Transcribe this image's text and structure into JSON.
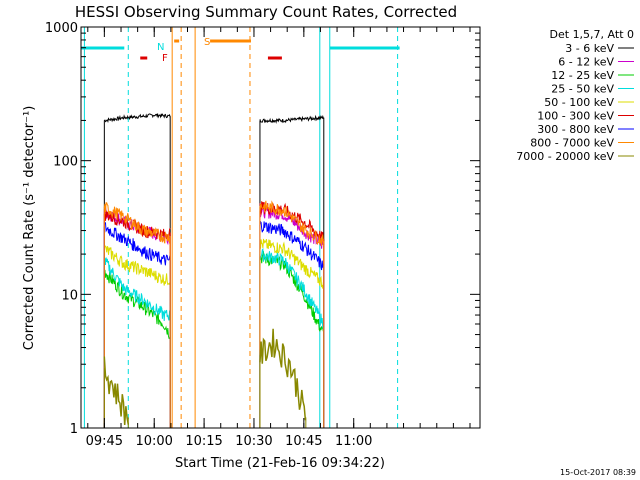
{
  "chart_data": {
    "type": "line",
    "title": "HESSI Observing Summary Count Rates, Corrected",
    "xlabel": "Start Time (21-Feb-16 09:34:22)",
    "ylabel": "Corrected Count Rate (s⁻¹ detector⁻¹)",
    "y_scale": "log",
    "ylim": [
      1,
      1000
    ],
    "y_ticks": [
      {
        "value": 1,
        "label": "1"
      },
      {
        "value": 10,
        "label": "10"
      },
      {
        "value": 100,
        "label": "100"
      },
      {
        "value": 1000,
        "label": "1000"
      }
    ],
    "x_range_minutes": [
      9.633,
      11.633
    ],
    "x_ticks": [
      {
        "value": 9.75,
        "label": "09:45"
      },
      {
        "value": 10.0,
        "label": "10:00"
      },
      {
        "value": 10.25,
        "label": "10:15"
      },
      {
        "value": 10.5,
        "label": "10:30"
      },
      {
        "value": 10.75,
        "label": "10:45"
      },
      {
        "value": 11.0,
        "label": "11:00"
      }
    ],
    "legend_header": "Det 1,5,7, Att 0",
    "legend_position": "outside-right",
    "series": [
      {
        "name": "3 - 6 keV",
        "color": "#000000",
        "seg1": [
          [
            9.75,
            200
          ],
          [
            9.85,
            210
          ],
          [
            9.95,
            215
          ],
          [
            10.0,
            220
          ],
          [
            10.08,
            215
          ]
        ],
        "seg2": [
          [
            10.53,
            200
          ],
          [
            10.65,
            200
          ],
          [
            10.75,
            205
          ],
          [
            10.85,
            210
          ]
        ]
      },
      {
        "name": "6 - 12 keV",
        "color": "#cc00cc",
        "seg1": [
          [
            9.75,
            42
          ],
          [
            9.85,
            35
          ],
          [
            9.95,
            30
          ],
          [
            10.05,
            27
          ],
          [
            10.08,
            27
          ]
        ],
        "seg2": [
          [
            10.53,
            42
          ],
          [
            10.65,
            40
          ],
          [
            10.75,
            30
          ],
          [
            10.85,
            23
          ]
        ]
      },
      {
        "name": "12 - 25 keV",
        "color": "#00cc00",
        "seg1": [
          [
            9.75,
            15
          ],
          [
            9.85,
            10
          ],
          [
            9.95,
            8
          ],
          [
            10.05,
            6
          ],
          [
            10.08,
            5
          ]
        ],
        "seg2": [
          [
            10.53,
            19
          ],
          [
            10.65,
            17
          ],
          [
            10.75,
            10
          ],
          [
            10.85,
            5
          ]
        ]
      },
      {
        "name": "25 - 50 keV",
        "color": "#00dddd",
        "seg1": [
          [
            9.75,
            18
          ],
          [
            9.85,
            11
          ],
          [
            9.95,
            9
          ],
          [
            10.05,
            7
          ],
          [
            10.08,
            7
          ]
        ],
        "seg2": [
          [
            10.53,
            20
          ],
          [
            10.65,
            18
          ],
          [
            10.75,
            11
          ],
          [
            10.85,
            6
          ]
        ]
      },
      {
        "name": "50 - 100 keV",
        "color": "#dddd00",
        "seg1": [
          [
            9.75,
            22
          ],
          [
            9.85,
            17
          ],
          [
            9.95,
            15
          ],
          [
            10.05,
            13
          ],
          [
            10.08,
            13
          ]
        ],
        "seg2": [
          [
            10.53,
            24
          ],
          [
            10.65,
            22
          ],
          [
            10.75,
            16
          ],
          [
            10.85,
            12
          ]
        ]
      },
      {
        "name": "100 - 300 keV",
        "color": "#dd0000",
        "seg1": [
          [
            9.75,
            40
          ],
          [
            9.85,
            35
          ],
          [
            9.95,
            30
          ],
          [
            10.05,
            28
          ],
          [
            10.08,
            29
          ]
        ],
        "seg2": [
          [
            10.53,
            45
          ],
          [
            10.65,
            43
          ],
          [
            10.75,
            35
          ],
          [
            10.85,
            26
          ]
        ]
      },
      {
        "name": "300 - 800 keV",
        "color": "#0000ff",
        "seg1": [
          [
            9.75,
            32
          ],
          [
            9.85,
            26
          ],
          [
            9.95,
            21
          ],
          [
            10.05,
            18
          ],
          [
            10.08,
            18
          ]
        ],
        "seg2": [
          [
            10.53,
            33
          ],
          [
            10.65,
            30
          ],
          [
            10.75,
            23
          ],
          [
            10.85,
            16
          ]
        ]
      },
      {
        "name": "800 - 7000 keV",
        "color": "#ff8800",
        "seg1": [
          [
            9.75,
            45
          ],
          [
            9.85,
            38
          ],
          [
            9.95,
            30
          ],
          [
            10.05,
            27
          ],
          [
            10.08,
            27
          ]
        ],
        "seg2": [
          [
            10.53,
            46
          ],
          [
            10.65,
            43
          ],
          [
            10.75,
            31
          ],
          [
            10.85,
            25
          ]
        ]
      },
      {
        "name": "7000 - 20000 keV",
        "color": "#888800",
        "seg1": [
          [
            9.75,
            2.8
          ],
          [
            9.8,
            2.0
          ],
          [
            9.84,
            1.5
          ],
          [
            9.87,
            1.2
          ]
        ],
        "seg2": [
          [
            10.53,
            3.5
          ],
          [
            10.6,
            4.5
          ],
          [
            10.68,
            3.0
          ],
          [
            10.72,
            2.0
          ],
          [
            10.76,
            1.2
          ]
        ]
      }
    ],
    "flags": [
      {
        "label": "N",
        "color": "#00dddd"
      },
      {
        "label": "F",
        "color": "#dd0000"
      },
      {
        "label": "S",
        "color": "#ff8800"
      }
    ]
  },
  "stamp": "15-Oct-2017 08:39"
}
